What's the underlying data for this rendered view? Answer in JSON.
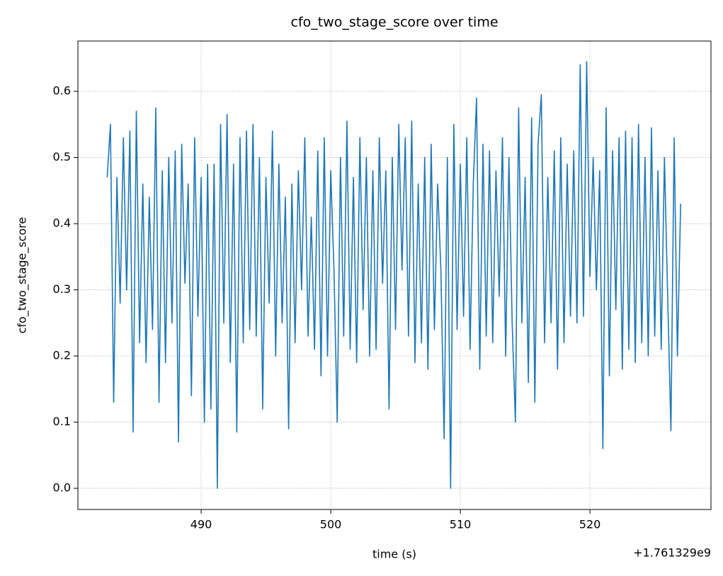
{
  "chart_data": {
    "type": "line",
    "title": "cfo_two_stage_score over time",
    "x_label": "time (s)",
    "y_label": "cfo_two_stage_score",
    "x_offset_label": "+1.761329e9",
    "grid": true,
    "xlim": [
      480.49,
      529.34
    ],
    "ylim": [
      -0.032,
      0.676
    ],
    "xticks": [
      490,
      500,
      510,
      520
    ],
    "yticks": [
      {
        "value": 0,
        "label": "0.0"
      },
      0.1,
      0.2,
      0.3,
      0.4,
      0.5,
      0.6
    ],
    "x": [
      482.75,
      483,
      483.25,
      483.5,
      483.75,
      484,
      484.25,
      484.5,
      484.75,
      485,
      485.25,
      485.5,
      485.75,
      486,
      486.25,
      486.5,
      486.75,
      487,
      487.25,
      487.5,
      487.75,
      488,
      488.25,
      488.5,
      488.75,
      489,
      489.25,
      489.5,
      489.75,
      490,
      490.25,
      490.5,
      490.75,
      491,
      491.25,
      491.5,
      491.75,
      492,
      492.25,
      492.5,
      492.75,
      493,
      493.25,
      493.5,
      493.75,
      494,
      494.25,
      494.5,
      494.75,
      495,
      495.25,
      495.5,
      495.75,
      496,
      496.25,
      496.5,
      496.75,
      497,
      497.25,
      497.5,
      497.75,
      498,
      498.25,
      498.5,
      498.75,
      499,
      499.25,
      499.5,
      499.75,
      500,
      500.25,
      500.5,
      500.75,
      501,
      501.25,
      501.5,
      501.75,
      502,
      502.25,
      502.5,
      502.75,
      503,
      503.25,
      503.5,
      503.75,
      504,
      504.25,
      504.5,
      504.75,
      505,
      505.25,
      505.5,
      505.75,
      506,
      506.25,
      506.5,
      506.75,
      507,
      507.25,
      507.5,
      507.75,
      508,
      508.25,
      508.5,
      508.75,
      509,
      509.25,
      509.5,
      509.75,
      510,
      510.25,
      510.5,
      510.75,
      511,
      511.25,
      511.5,
      511.75,
      512,
      512.25,
      512.5,
      512.75,
      513,
      513.25,
      513.5,
      513.75,
      514,
      514.25,
      514.5,
      514.75,
      515,
      515.25,
      515.5,
      515.75,
      516,
      516.25,
      516.5,
      516.75,
      517,
      517.25,
      517.5,
      517.75,
      518,
      518.25,
      518.5,
      518.75,
      519,
      519.25,
      519.5,
      519.75,
      520,
      520.25,
      520.5,
      520.75,
      521,
      521.25,
      521.5,
      521.75,
      522,
      522.25,
      522.5,
      522.75,
      523,
      523.25,
      523.5,
      523.75,
      524,
      524.25,
      524.5,
      524.75,
      525,
      525.25,
      525.5,
      525.75,
      526,
      526.25,
      526.5,
      526.75,
      527
    ],
    "series": [
      {
        "name": "cfo_two_stage_score",
        "color": "#1f77b4",
        "values": [
          0.47,
          0.55,
          0.13,
          0.47,
          0.28,
          0.53,
          0.3,
          0.54,
          0.085,
          0.57,
          0.22,
          0.46,
          0.19,
          0.44,
          0.24,
          0.575,
          0.13,
          0.48,
          0.19,
          0.5,
          0.25,
          0.51,
          0.07,
          0.52,
          0.31,
          0.46,
          0.14,
          0.53,
          0.26,
          0.47,
          0.1,
          0.49,
          0.12,
          0.49,
          0.0,
          0.55,
          0.25,
          0.565,
          0.19,
          0.49,
          0.085,
          0.53,
          0.22,
          0.54,
          0.24,
          0.55,
          0.23,
          0.5,
          0.12,
          0.47,
          0.28,
          0.54,
          0.2,
          0.49,
          0.25,
          0.44,
          0.09,
          0.46,
          0.22,
          0.48,
          0.3,
          0.53,
          0.23,
          0.41,
          0.21,
          0.51,
          0.17,
          0.53,
          0.2,
          0.48,
          0.33,
          0.1,
          0.5,
          0.23,
          0.555,
          0.21,
          0.47,
          0.19,
          0.53,
          0.27,
          0.5,
          0.2,
          0.48,
          0.21,
          0.53,
          0.31,
          0.48,
          0.12,
          0.5,
          0.24,
          0.55,
          0.33,
          0.53,
          0.23,
          0.555,
          0.19,
          0.46,
          0.22,
          0.5,
          0.18,
          0.52,
          0.24,
          0.46,
          0.33,
          0.075,
          0.5,
          0.0,
          0.55,
          0.24,
          0.49,
          0.26,
          0.53,
          0.21,
          0.46,
          0.59,
          0.18,
          0.52,
          0.23,
          0.51,
          0.22,
          0.48,
          0.29,
          0.53,
          0.2,
          0.5,
          0.25,
          0.1,
          0.575,
          0.25,
          0.47,
          0.16,
          0.56,
          0.13,
          0.52,
          0.595,
          0.22,
          0.47,
          0.25,
          0.51,
          0.18,
          0.53,
          0.22,
          0.49,
          0.26,
          0.51,
          0.25,
          0.64,
          0.26,
          0.645,
          0.32,
          0.5,
          0.3,
          0.48,
          0.06,
          0.575,
          0.17,
          0.51,
          0.27,
          0.53,
          0.18,
          0.54,
          0.21,
          0.53,
          0.19,
          0.55,
          0.22,
          0.5,
          0.2,
          0.545,
          0.23,
          0.48,
          0.21,
          0.5,
          0.29,
          0.087,
          0.53,
          0.2,
          0.43
        ]
      }
    ]
  }
}
